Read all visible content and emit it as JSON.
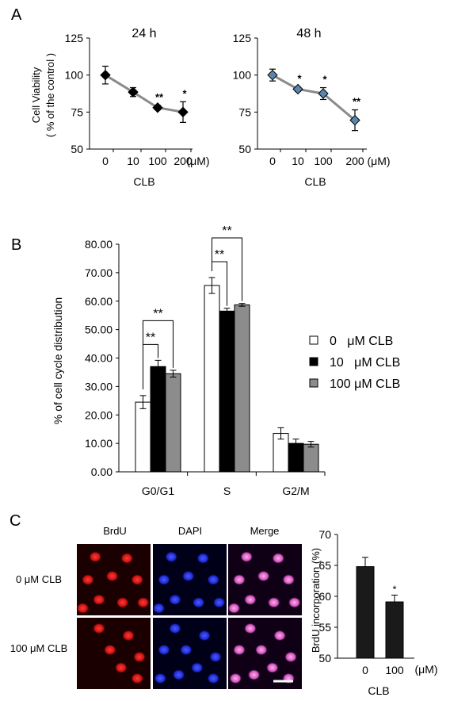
{
  "figure": {
    "panel_labels": [
      "A",
      "B",
      "C"
    ]
  },
  "chart_data": [
    {
      "type": "line",
      "title": "24 h",
      "xlabel": "CLB",
      "x_unit": "(μM)",
      "ylabel": "Cell Viability",
      "ylabel2": "( % of the control )",
      "categories": [
        "0",
        "10",
        "100",
        "200"
      ],
      "series": [
        {
          "values": [
            100,
            88.5,
            78,
            75
          ],
          "errors": [
            6,
            3,
            1.5,
            7
          ],
          "marker": "diamond",
          "marker_color": "#000000"
        }
      ],
      "annotations": [
        "",
        "",
        "**",
        "*"
      ],
      "yticks": [
        50,
        75,
        100,
        125
      ],
      "ylim": [
        50,
        125
      ]
    },
    {
      "type": "line",
      "title": "48 h",
      "xlabel": "CLB",
      "x_unit": "(μM)",
      "categories": [
        "0",
        "10",
        "100",
        "200"
      ],
      "series": [
        {
          "values": [
            100,
            90.5,
            87.5,
            69.5
          ],
          "errors": [
            4,
            1.5,
            4,
            7
          ],
          "marker": "diamond",
          "marker_color": "#5a86ad"
        }
      ],
      "annotations": [
        "",
        "*",
        "*",
        "**"
      ],
      "yticks": [
        50,
        75,
        100,
        125
      ],
      "ylim": [
        50,
        125
      ]
    },
    {
      "type": "bar",
      "ylabel": "% of cell cycle distribution",
      "categories": [
        "G0/G1",
        "S",
        "G2/M"
      ],
      "series": [
        {
          "name": "0   μM CLB",
          "values": [
            24.5,
            65.5,
            13.5
          ],
          "errors": [
            2.3,
            2.8,
            2.0
          ],
          "color": "#ffffff"
        },
        {
          "name": "10   μM CLB",
          "values": [
            37.0,
            56.5,
            10.0
          ],
          "errors": [
            2.2,
            1.0,
            1.5
          ],
          "color": "#000000"
        },
        {
          "name": "100 μM CLB",
          "values": [
            34.5,
            58.7,
            9.7
          ],
          "errors": [
            1.2,
            0.5,
            1.0
          ],
          "color": "#8c8c8c"
        }
      ],
      "yticks": [
        "0.00",
        "10.00",
        "20.00",
        "30.00",
        "40.00",
        "50.00",
        "60.00",
        "70.00",
        "80.00"
      ],
      "ylim": [
        0,
        80
      ],
      "significance": [
        {
          "group": 0,
          "from": 0,
          "to": 1,
          "label": "**"
        },
        {
          "group": 0,
          "from": 0,
          "to": 2,
          "label": "**"
        },
        {
          "group": 1,
          "from": 0,
          "to": 1,
          "label": "**"
        },
        {
          "group": 1,
          "from": 0,
          "to": 2,
          "label": "**"
        }
      ],
      "legend_position": "right"
    },
    {
      "type": "bar",
      "ylabel": "BrdU incorporation (%)",
      "xlabel": "CLB",
      "x_unit": "(μM)",
      "categories": [
        "0",
        "100"
      ],
      "series": [
        {
          "values": [
            64.8,
            59.1
          ],
          "errors": [
            1.5,
            1.1
          ],
          "color": "#1a1a1a"
        }
      ],
      "annotations": [
        "",
        "*"
      ],
      "yticks": [
        50,
        55,
        60,
        65,
        70
      ],
      "ylim": [
        50,
        70
      ]
    }
  ],
  "micrographs": {
    "columns": [
      "BrdU",
      "DAPI",
      "Merge"
    ],
    "rows": [
      "0 μM CLB",
      "100 μM CLB"
    ]
  }
}
